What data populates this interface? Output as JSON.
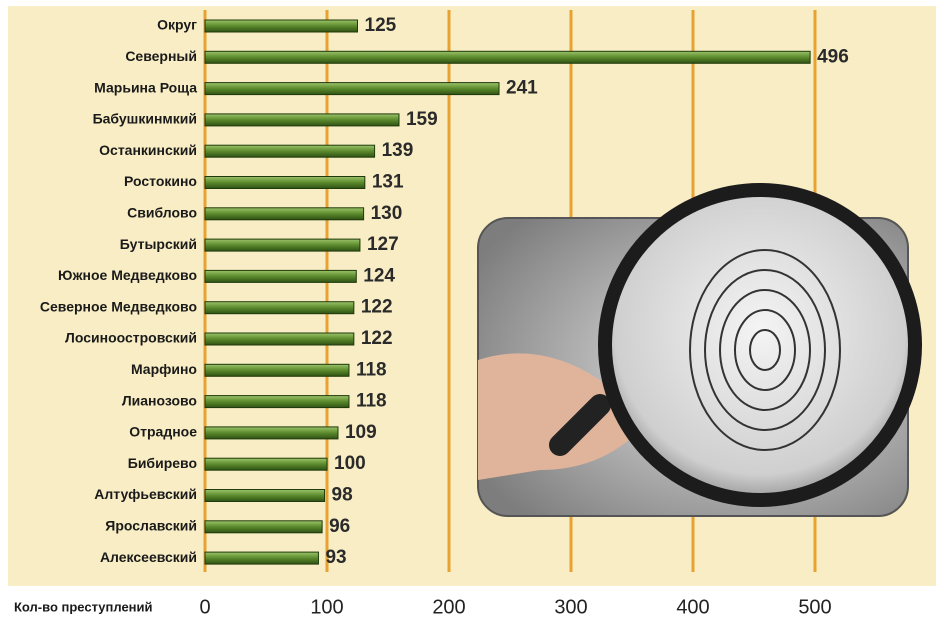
{
  "chart_data": {
    "type": "bar",
    "orientation": "horizontal",
    "x_label": "Кол-во преступлений",
    "categories": [
      "Округ",
      "Северный",
      "Марьина Роща",
      "Бабушкинмкий",
      "Останкинский",
      "Ростокино",
      "Свиблово",
      "Бутырский",
      "Южное Медведково",
      "Северное Медведково",
      "Лосиноостровский",
      "Марфино",
      "Лианозово",
      "Отрадное",
      "Бибирево",
      "Алтуфьевский",
      "Ярославский",
      "Алексеевский"
    ],
    "values": [
      125,
      496,
      241,
      159,
      139,
      131,
      130,
      127,
      124,
      122,
      122,
      118,
      118,
      109,
      100,
      98,
      96,
      93
    ],
    "color": "#5b8a2c",
    "xlim": [
      0,
      600
    ],
    "xticks": [
      0,
      100,
      200,
      300,
      400,
      500
    ],
    "grid": true
  }
}
